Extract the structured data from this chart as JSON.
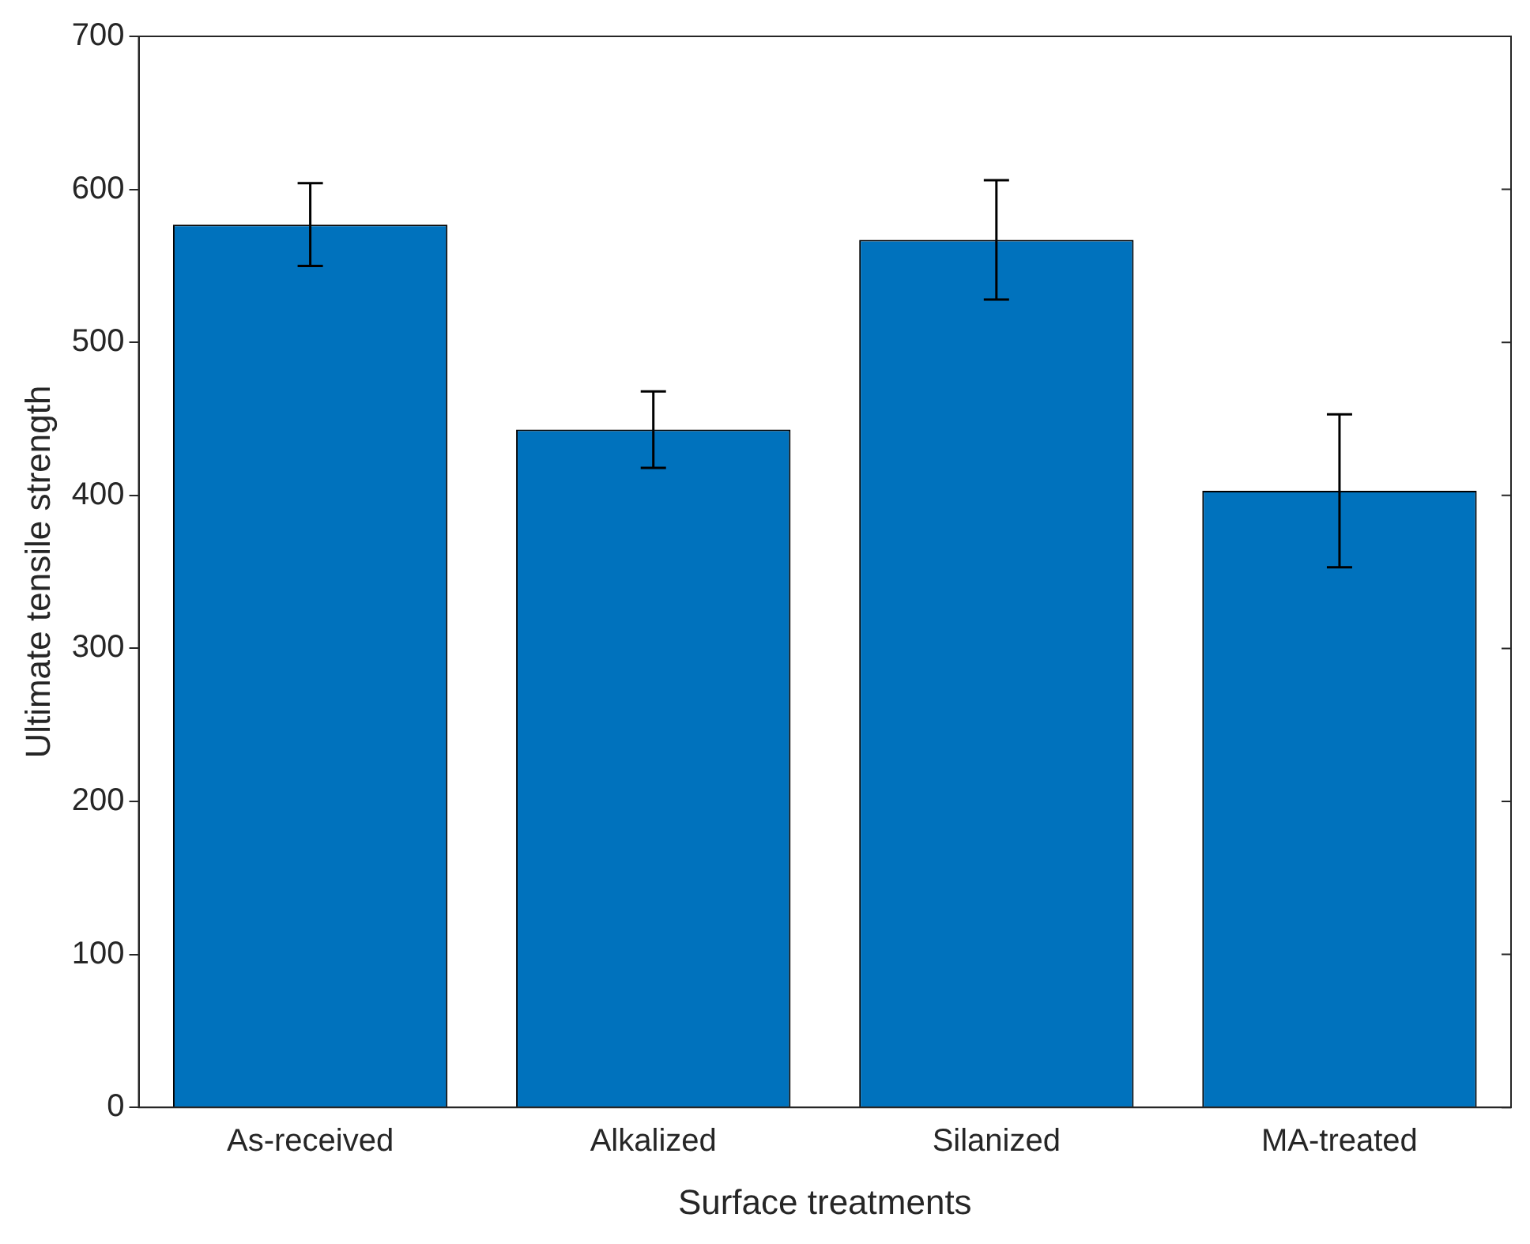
{
  "chart_data": {
    "type": "bar",
    "xlabel": "Surface treatments",
    "ylabel": "Ultimate tensile strength",
    "categories": [
      "As-received",
      "Alkalized",
      "Silanized",
      "MA-treated"
    ],
    "values": [
      577,
      443,
      567,
      403
    ],
    "errors": [
      27,
      25,
      39,
      50
    ],
    "color": "#0072bd",
    "ylim": [
      0,
      700
    ],
    "yticks": [
      0,
      100,
      200,
      300,
      400,
      500,
      600,
      700
    ],
    "grid": false,
    "legend": false
  }
}
